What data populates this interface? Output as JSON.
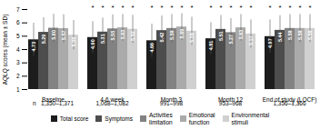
{
  "chart_data": {
    "type": "bar",
    "categories": [
      "Baseline",
      "4-6 week",
      "Month 3",
      "Month 12",
      "End of study (LOCF)"
    ],
    "series": [
      {
        "name": "Total score",
        "color": "#1c1c1c",
        "values": [
          4.73,
          4.9,
          4.66,
          4.81,
          4.97
        ],
        "value_labels": [
          "4.73",
          "4.90",
          "4.66",
          "4.81",
          "4.97"
        ],
        "errors": [
          1.25,
          1.2,
          1.25,
          1.2,
          1.25
        ]
      },
      {
        "name": "Symptoms",
        "color": "#4d4d4d",
        "values": [
          5.29,
          5.31,
          5.42,
          5.51,
          5.44
        ],
        "value_labels": [
          "5.29",
          "5.31",
          "5.42",
          "5.51",
          "5.44"
        ],
        "errors": [
          1.1,
          1.05,
          1.1,
          1.05,
          1.1
        ]
      },
      {
        "name": "Activities\nlimitation",
        "color": "#828282",
        "values": [
          5.6,
          5.55,
          5.58,
          5.27,
          5.58
        ],
        "value_labels": [
          "5.60",
          "5.55",
          "5.58",
          "5.27",
          "5.58"
        ],
        "errors": [
          1.05,
          1.05,
          1.05,
          1.05,
          1.05
        ]
      },
      {
        "name": "Emotional\nfunction",
        "color": "#aaaaaa",
        "values": [
          5.57,
          5.63,
          5.69,
          5.63,
          5.58
        ],
        "value_labels": [
          "5.57",
          "5.63",
          "5.69",
          "5.63",
          "5.58"
        ],
        "errors": [
          1.05,
          1.0,
          1.0,
          1.0,
          1.05
        ]
      },
      {
        "name": "Environmental\nstimuli",
        "color": "#d0d0d0",
        "values": [
          5.08,
          5.52,
          5.38,
          5.17,
          5.58
        ],
        "value_labels": [
          "5.08",
          "5.52",
          "5.38",
          "5.17",
          "5.58"
        ],
        "errors": [
          1.1,
          1.05,
          1.05,
          1.05,
          1.05
        ]
      }
    ],
    "ylabel": "AQLQ scores (mean ± SD)",
    "ylim": [
      1,
      7
    ],
    "yticks": [
      1,
      2,
      3,
      4,
      5,
      6,
      7
    ],
    "data_labels": true,
    "grid": false,
    "legend": "bottom",
    "annotations": [
      {
        "category": "4-6 week",
        "text": "*"
      },
      {
        "category": "Month 3",
        "text": "*"
      },
      {
        "category": "Month 12",
        "text": "*"
      },
      {
        "category": "End of study (LOCF)",
        "text": "*"
      }
    ],
    "n_labels": [
      "n   1,350–1,371",
      "1,068–1,082",
      "991–998",
      "953–968",
      "1,356–1,366"
    ]
  }
}
